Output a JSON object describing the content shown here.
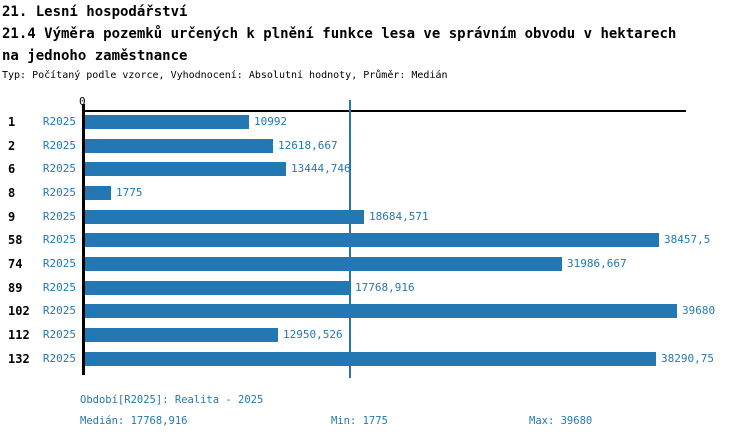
{
  "header": {
    "title_line1": "21. Lesní hospodářství",
    "title_line2": "21.4 Výměra pozemků určených k plnění funkce lesa ve správním obvodu v hektarech",
    "title_line3": "na jednoho zaměstnance",
    "subtitle": "Typ: Počítaný podle vzorce, Vyhodnocení: Absolutní hodnoty, Průměr: Medián"
  },
  "chart_data": {
    "type": "bar",
    "orientation": "horizontal",
    "title": "21.4 Výměra pozemků určených k plnění funkce lesa ve správním obvodu v hektarech na jednoho zaměstnance",
    "categories": [
      "1",
      "2",
      "6",
      "8",
      "9",
      "58",
      "74",
      "89",
      "102",
      "112",
      "132"
    ],
    "series": [
      {
        "name": "R2025",
        "values": [
          10992,
          12618.667,
          13444.746,
          1775,
          18684.571,
          38457.5,
          31986.667,
          17768.916,
          39680,
          12950.526,
          38290.75
        ]
      }
    ],
    "value_labels": [
      "10992",
      "12618,667",
      "13444,746",
      "1775",
      "18684,571",
      "38457,5",
      "31986,667",
      "17768,916",
      "39680",
      "12950,526",
      "38290,75"
    ],
    "series_row_label": "R2025",
    "x_axis_zero_label": "0",
    "xlim": [
      0,
      39680
    ],
    "median_value": 17768.916,
    "grid": false,
    "legend_position": "none",
    "bar_color": "#2378b4"
  },
  "footer": {
    "period": "Období[R2025]: Realita - 2025",
    "median": "Medián: 17768,916",
    "min": "Min: 1775",
    "max": "Max: 39680"
  },
  "colors": {
    "accent_blue": "#2378b4",
    "axis_black": "#000000",
    "background": "#ffffff"
  }
}
